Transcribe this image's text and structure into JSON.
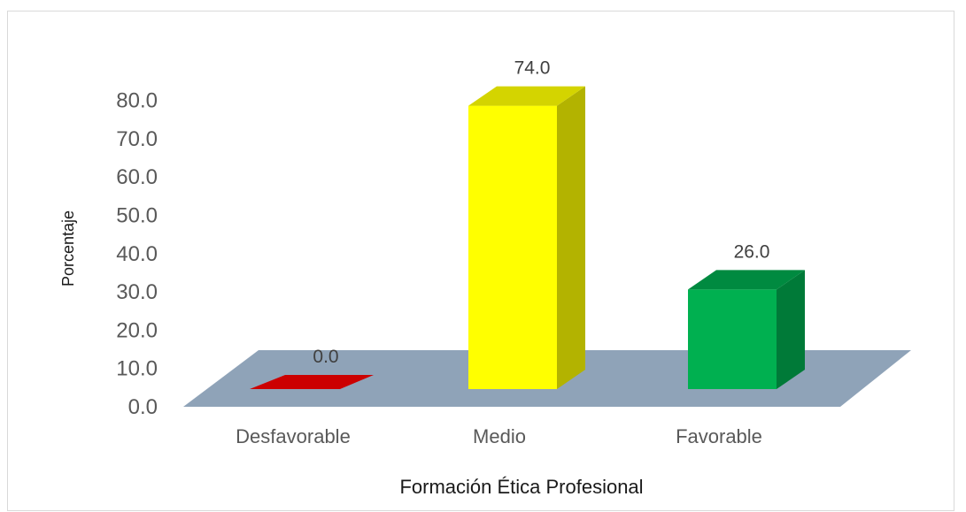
{
  "chart_data": {
    "type": "bar",
    "categories": [
      "Desfavorable",
      "Medio",
      "Favorable"
    ],
    "values": [
      0.0,
      74.0,
      26.0
    ],
    "value_labels": [
      "0.0",
      "74.0",
      "26.0"
    ],
    "title": "",
    "xlabel": "Formación Ética Profesional",
    "ylabel": "Porcentaje",
    "ylim": [
      0,
      80
    ],
    "y_ticks": [
      "0.0",
      "10.0",
      "20.0",
      "30.0",
      "40.0",
      "50.0",
      "60.0",
      "70.0",
      "80.0"
    ],
    "bar_colors": [
      "#cc0000",
      "#ffff00",
      "#00b050"
    ],
    "bar_side_colors": [
      "#990000",
      "#b3b300",
      "#007a38"
    ],
    "bar_top_colors": [
      "#e02020",
      "#d4d400",
      "#008a40"
    ],
    "floor_color": "#8fa3b8",
    "grid": false,
    "legend": "none",
    "style": "3d-column"
  }
}
